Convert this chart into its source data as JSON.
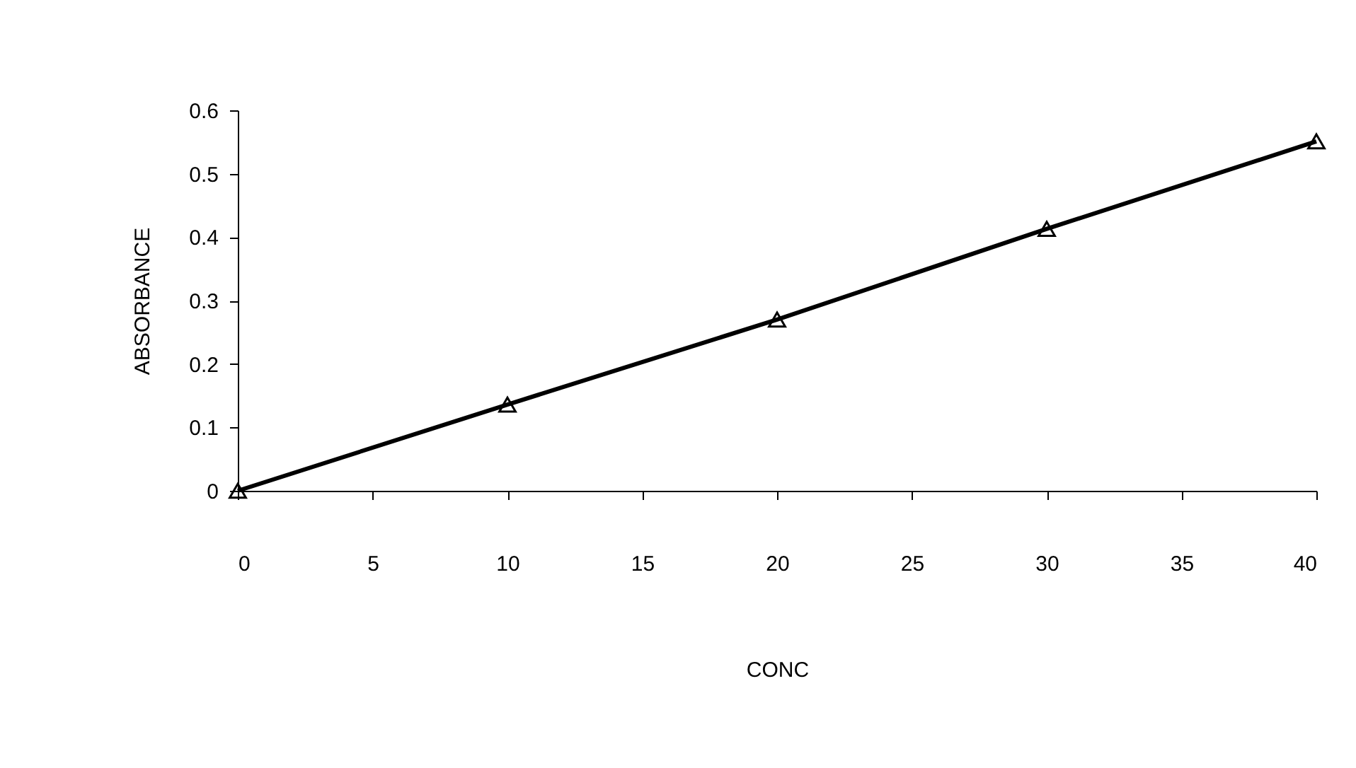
{
  "chart_data": {
    "type": "line",
    "xlabel": "CONC",
    "ylabel": "ABSORBANCE",
    "x": [
      0,
      10,
      20,
      30,
      40
    ],
    "series": [
      {
        "color": "#000000",
        "values": [
          0,
          0.136,
          0.27,
          0.413,
          0.551
        ]
      }
    ],
    "xlim": [
      0,
      40
    ],
    "xticks": [
      0,
      5,
      10,
      15,
      20,
      25,
      30,
      35,
      40
    ],
    "ylim": [
      0,
      0.6
    ],
    "yticks": [
      0,
      0.1,
      0.2,
      0.3,
      0.4,
      0.5,
      0.6
    ],
    "grid": false,
    "legend": false,
    "marker": "triangle",
    "line_style": "solid"
  }
}
